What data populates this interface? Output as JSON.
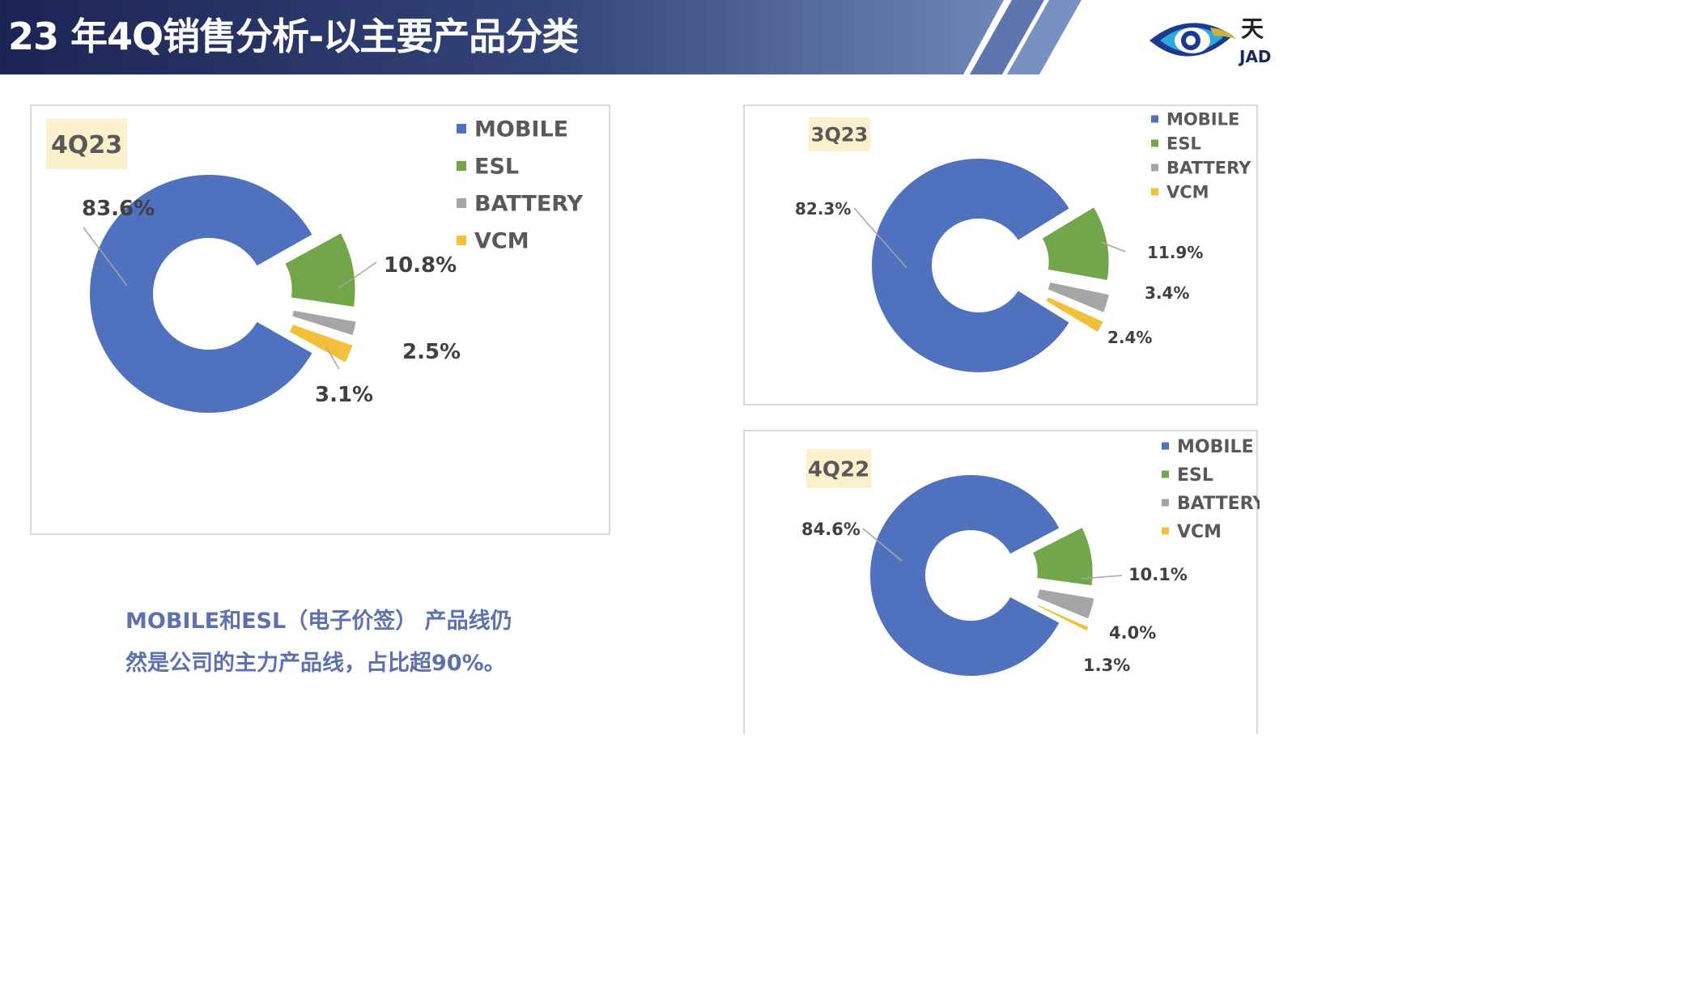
{
  "header": {
    "title": "23 年4Q销售分析-以主要产品分类",
    "logo_cn": "天",
    "logo_en": "JAD"
  },
  "colors": {
    "MOBILE": "#4f71be",
    "ESL": "#73a54a",
    "BATTERY": "#a5a5a5",
    "VCM": "#f4bf3b",
    "header_dark": "#1c2454",
    "header_light": "#6f86b8",
    "quarter_badge_bg": "#fcf0cd"
  },
  "summary": {
    "line1": "MOBILE和ESL（电子价签） 产品线仍",
    "line2": "然是公司的主力产品线，占比超90%。"
  },
  "chart_data": [
    {
      "type": "pie",
      "style": "exploded-donut",
      "quarter_label": "4Q23",
      "categories": [
        "MOBILE",
        "ESL",
        "BATTERY",
        "VCM"
      ],
      "values": [
        83.6,
        10.8,
        2.5,
        3.1
      ],
      "labels": [
        "83.6%",
        "10.8%",
        "2.5%",
        "3.1%"
      ],
      "legend": [
        "MOBILE",
        "ESL",
        "BATTERY",
        "VCM"
      ],
      "legend_position": "top-right"
    },
    {
      "type": "pie",
      "style": "exploded-donut",
      "quarter_label": "3Q23",
      "categories": [
        "MOBILE",
        "ESL",
        "BATTERY",
        "VCM"
      ],
      "values": [
        82.3,
        11.9,
        3.4,
        2.4
      ],
      "labels": [
        "82.3%",
        "11.9%",
        "3.4%",
        "2.4%"
      ],
      "legend": [
        "MOBILE",
        "ESL",
        "BATTERY",
        "VCM"
      ],
      "legend_position": "top-right"
    },
    {
      "type": "pie",
      "style": "exploded-donut",
      "quarter_label": "4Q22",
      "categories": [
        "MOBILE",
        "ESL",
        "BATTERY",
        "VCM"
      ],
      "values": [
        84.6,
        10.1,
        4.0,
        1.3
      ],
      "labels": [
        "84.6%",
        "10.1%",
        "4.0%",
        "1.3%"
      ],
      "legend": [
        "MOBILE",
        "ESL",
        "BATTERY",
        "VCM"
      ],
      "legend_position": "top-right"
    }
  ]
}
